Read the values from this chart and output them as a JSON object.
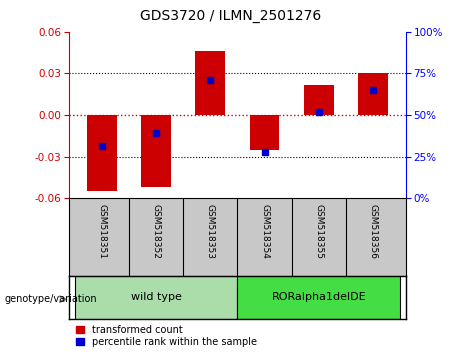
{
  "title": "GDS3720 / ILMN_2501276",
  "samples": [
    "GSM518351",
    "GSM518352",
    "GSM518353",
    "GSM518354",
    "GSM518355",
    "GSM518356"
  ],
  "red_bars": [
    -0.055,
    -0.052,
    0.046,
    -0.025,
    0.022,
    0.03
  ],
  "blue_dots": [
    -0.022,
    -0.013,
    0.025,
    -0.027,
    0.002,
    0.018
  ],
  "ylim": [
    -0.06,
    0.06
  ],
  "yticks_left": [
    -0.06,
    -0.03,
    0,
    0.03,
    0.06
  ],
  "yticks_right": [
    0,
    25,
    50,
    75,
    100
  ],
  "red_color": "#CC0000",
  "blue_color": "#0000CC",
  "tick_bg_color": "#C8C8C8",
  "group_wt_color": "#AAFFAA",
  "group_ror_color": "#44DD44",
  "legend_red": "transformed count",
  "legend_blue": "percentile rank within the sample"
}
